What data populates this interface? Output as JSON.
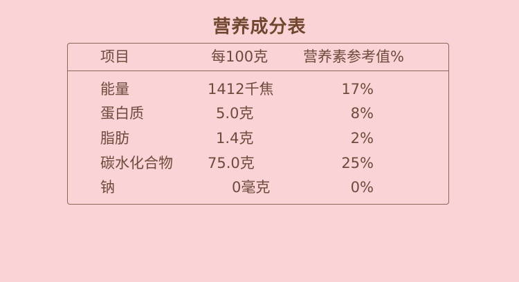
{
  "title": "营养成分表",
  "table": {
    "headers": [
      "项目",
      "每100克",
      "营养素参考值%"
    ],
    "rows": [
      [
        "能量",
        "1412千焦",
        "17%"
      ],
      [
        "蛋白质",
        "5.0克",
        "8%"
      ],
      [
        "脂肪",
        "1.4克",
        "2%"
      ],
      [
        "碳水化合物",
        "75.0克",
        "25%"
      ],
      [
        "钠",
        "0毫克",
        "0%"
      ]
    ]
  }
}
